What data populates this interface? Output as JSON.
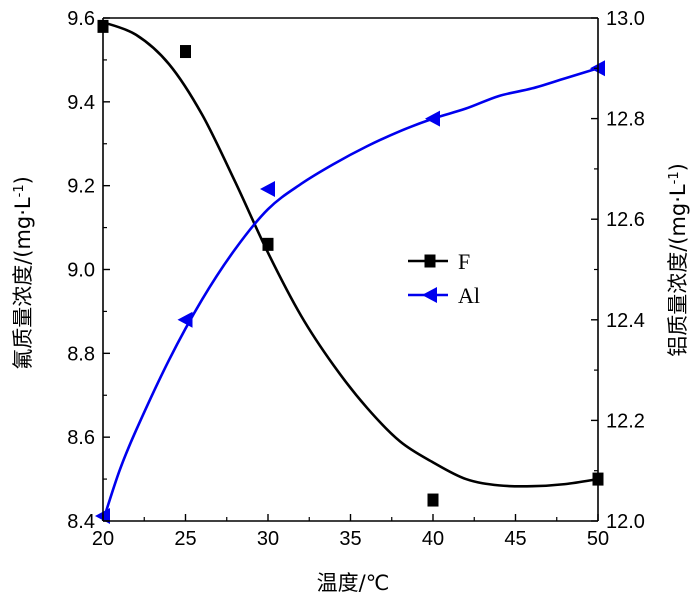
{
  "chart_data": {
    "type": "line",
    "x": [
      20,
      25,
      30,
      40,
      50
    ],
    "xlabel": "温度/℃",
    "xlim": [
      20,
      50
    ],
    "xticks": [
      20,
      25,
      30,
      35,
      40,
      45,
      50
    ],
    "ylabel_left_text": "氟质量浓度/(mg·L",
    "ylabel_right_text": "铝质量浓度/(mg·L",
    "ylabel_sup": "-1",
    "ylabel_close": ")",
    "ylim_left": [
      8.4,
      9.6
    ],
    "yticks_left": [
      "8.4",
      "8.6",
      "8.8",
      "9.0",
      "9.2",
      "9.4",
      "9.6"
    ],
    "ylim_right": [
      12.0,
      13.0
    ],
    "yticks_right": [
      "12.0",
      "12.2",
      "12.4",
      "12.6",
      "12.8",
      "13.0"
    ],
    "legend_position": "center-right",
    "grid": false,
    "series": [
      {
        "name": "F",
        "axis": "left",
        "marker": "square",
        "color": "#000000",
        "values": [
          9.58,
          9.52,
          9.06,
          8.45,
          8.5
        ],
        "fit_curve": [
          [
            20,
            9.59
          ],
          [
            22,
            9.56
          ],
          [
            24,
            9.49
          ],
          [
            26,
            9.37
          ],
          [
            28,
            9.21
          ],
          [
            30,
            9.04
          ],
          [
            32,
            8.89
          ],
          [
            34,
            8.77
          ],
          [
            36,
            8.67
          ],
          [
            38,
            8.59
          ],
          [
            40,
            8.54
          ],
          [
            42,
            8.5
          ],
          [
            44,
            8.485
          ],
          [
            46,
            8.483
          ],
          [
            48,
            8.488
          ],
          [
            50,
            8.5
          ]
        ]
      },
      {
        "name": "Al",
        "axis": "right",
        "marker": "triangle-left",
        "color": "#0000ee",
        "values": [
          12.01,
          12.4,
          12.66,
          12.8,
          12.9
        ],
        "fit_curve": [
          [
            20,
            12.0
          ],
          [
            21,
            12.1
          ],
          [
            22,
            12.18
          ],
          [
            24,
            12.32
          ],
          [
            26,
            12.44
          ],
          [
            28,
            12.54
          ],
          [
            30,
            12.62
          ],
          [
            32,
            12.67
          ],
          [
            34,
            12.71
          ],
          [
            36,
            12.745
          ],
          [
            38,
            12.775
          ],
          [
            40,
            12.8
          ],
          [
            42,
            12.82
          ],
          [
            44,
            12.845
          ],
          [
            46,
            12.86
          ],
          [
            48,
            12.88
          ],
          [
            50,
            12.9
          ]
        ]
      }
    ]
  }
}
